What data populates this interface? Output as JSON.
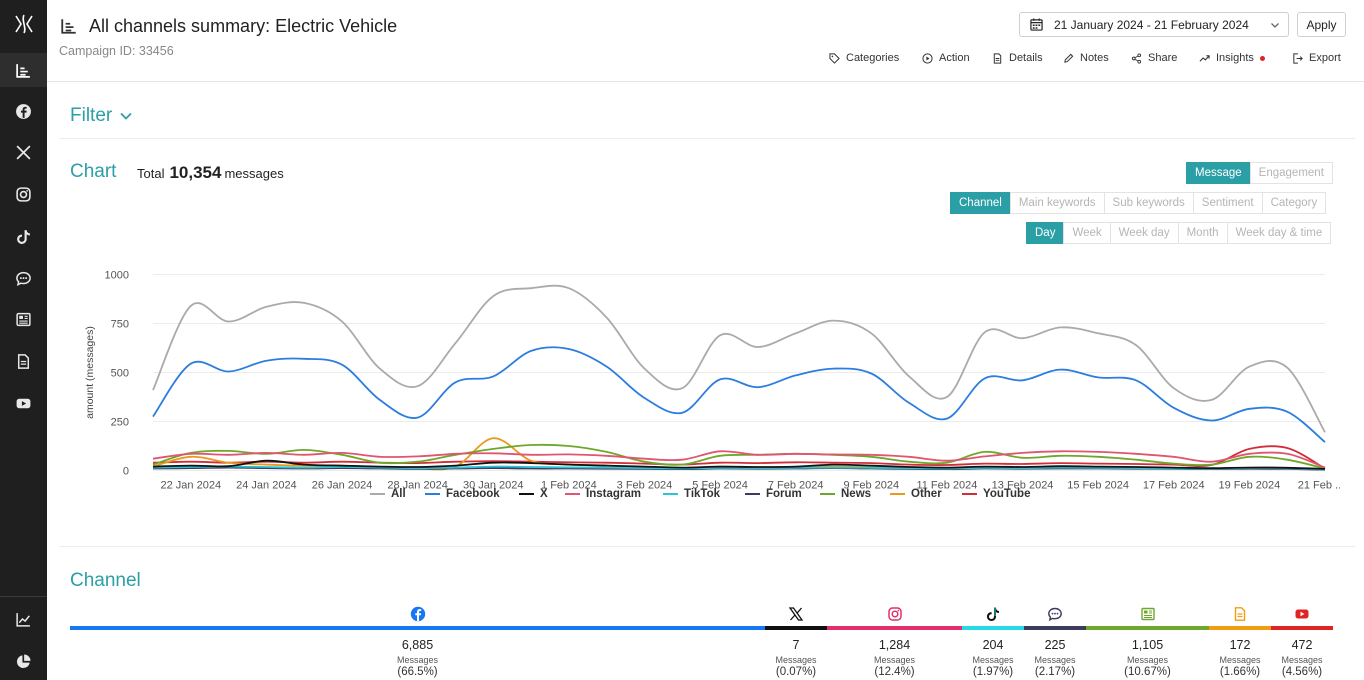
{
  "header": {
    "title": "All channels summary: Electric Vehicle",
    "campaign_id": "Campaign ID: 33456",
    "date_range": "21 January 2024 - 21 February 2024",
    "apply_label": "Apply",
    "actions": [
      {
        "label": "Categories",
        "icon": "tag-icon"
      },
      {
        "label": "Action",
        "icon": "play-circle-icon"
      },
      {
        "label": "Details",
        "icon": "document-icon"
      },
      {
        "label": "Notes",
        "icon": "pencil-icon"
      },
      {
        "label": "Share",
        "icon": "share-icon"
      },
      {
        "label": "Insights",
        "icon": "trend-icon"
      },
      {
        "label": "Export",
        "icon": "export-icon"
      }
    ]
  },
  "sidebar": {
    "items": [
      "logo",
      "summary-icon",
      "facebook-icon",
      "x-icon",
      "instagram-icon",
      "tiktok-icon",
      "chat-icon",
      "news-icon",
      "document-icon",
      "youtube-icon",
      "line-chart-icon",
      "pie-chart-icon"
    ]
  },
  "filter": {
    "label": "Filter"
  },
  "chart_section": {
    "heading": "Chart",
    "total_label": "Total",
    "total_value": "10,354",
    "total_unit": "messages",
    "metric_tabs": [
      "Message",
      "Engagement"
    ],
    "dimension_tabs": [
      "Channel",
      "Main keywords",
      "Sub keywords",
      "Sentiment",
      "Category"
    ],
    "period_tabs": [
      "Day",
      "Week",
      "Week day",
      "Month",
      "Week day & time"
    ]
  },
  "chart_data": {
    "type": "line",
    "ylabel": "amount (messages)",
    "ylim": [
      0,
      1000
    ],
    "yticks": [
      0,
      250,
      500,
      750,
      1000
    ],
    "x_tick_labels": [
      "22 Jan 2024",
      "24 Jan 2024",
      "26 Jan 2024",
      "28 Jan 2024",
      "30 Jan 2024",
      "1 Feb 2024",
      "3 Feb 2024",
      "5 Feb 2024",
      "7 Feb 2024",
      "9 Feb 2024",
      "11 Feb 2024",
      "13 Feb 2024",
      "15 Feb 2024",
      "17 Feb 2024",
      "19 Feb 2024",
      "21 Feb ..."
    ],
    "x": [
      "21 Jan",
      "22 Jan",
      "23 Jan",
      "24 Jan",
      "25 Jan",
      "26 Jan",
      "27 Jan",
      "28 Jan",
      "29 Jan",
      "30 Jan",
      "31 Jan",
      "1 Feb",
      "2 Feb",
      "3 Feb",
      "4 Feb",
      "5 Feb",
      "6 Feb",
      "7 Feb",
      "8 Feb",
      "9 Feb",
      "10 Feb",
      "11 Feb",
      "12 Feb",
      "13 Feb",
      "14 Feb",
      "15 Feb",
      "16 Feb",
      "17 Feb",
      "18 Feb",
      "19 Feb",
      "20 Feb",
      "21 Feb"
    ],
    "grid": true,
    "legend_position": "bottom",
    "series": [
      {
        "name": "All",
        "color": "#aaaaaa",
        "values": [
          410,
          840,
          760,
          835,
          855,
          760,
          520,
          430,
          650,
          890,
          930,
          930,
          780,
          520,
          420,
          690,
          630,
          700,
          765,
          700,
          480,
          375,
          705,
          675,
          730,
          700,
          640,
          420,
          360,
          530,
          525,
          195
        ]
      },
      {
        "name": "Facebook",
        "color": "#2b7de0",
        "values": [
          275,
          545,
          505,
          560,
          570,
          540,
          360,
          270,
          450,
          480,
          610,
          620,
          530,
          370,
          295,
          465,
          425,
          485,
          520,
          495,
          345,
          265,
          470,
          460,
          515,
          475,
          460,
          320,
          255,
          315,
          300,
          145
        ]
      },
      {
        "name": "X",
        "color": "#111111",
        "values": [
          20,
          25,
          22,
          50,
          30,
          25,
          20,
          18,
          25,
          40,
          38,
          30,
          25,
          20,
          15,
          20,
          18,
          20,
          30,
          25,
          18,
          15,
          20,
          18,
          22,
          20,
          18,
          15,
          12,
          15,
          14,
          8
        ]
      },
      {
        "name": "Instagram",
        "color": "#e05570",
        "values": [
          60,
          85,
          80,
          90,
          80,
          90,
          70,
          72,
          85,
          88,
          80,
          82,
          75,
          60,
          55,
          98,
          80,
          85,
          82,
          80,
          70,
          50,
          72,
          90,
          98,
          95,
          85,
          70,
          45,
          85,
          85,
          15
        ]
      },
      {
        "name": "TikTok",
        "color": "#2bc4d4",
        "values": [
          15,
          18,
          20,
          18,
          15,
          18,
          15,
          12,
          15,
          20,
          18,
          16,
          15,
          12,
          10,
          14,
          12,
          14,
          15,
          14,
          12,
          10,
          14,
          12,
          15,
          14,
          12,
          10,
          9,
          12,
          11,
          5
        ]
      },
      {
        "name": "Forum",
        "color": "#3c3c60",
        "values": [
          10,
          12,
          15,
          12,
          10,
          12,
          10,
          8,
          10,
          12,
          10,
          10,
          9,
          8,
          7,
          10,
          9,
          10,
          12,
          10,
          8,
          7,
          10,
          9,
          10,
          10,
          9,
          8,
          7,
          9,
          8,
          4
        ]
      },
      {
        "name": "News",
        "color": "#6ea82b",
        "values": [
          30,
          90,
          100,
          85,
          105,
          80,
          40,
          45,
          80,
          110,
          130,
          125,
          95,
          45,
          30,
          75,
          80,
          85,
          80,
          70,
          45,
          40,
          95,
          65,
          75,
          70,
          55,
          35,
          30,
          70,
          55,
          10
        ]
      },
      {
        "name": "Other",
        "color": "#e89a20",
        "values": [
          20,
          70,
          40,
          30,
          25,
          25,
          15,
          10,
          20,
          165,
          50,
          30,
          25,
          15,
          10,
          20,
          15,
          18,
          20,
          18,
          12,
          10,
          15,
          14,
          16,
          15,
          14,
          12,
          10,
          14,
          12,
          5
        ]
      },
      {
        "name": "YouTube",
        "color": "#d12e3a",
        "values": [
          40,
          45,
          40,
          45,
          40,
          45,
          40,
          38,
          45,
          48,
          45,
          42,
          40,
          35,
          30,
          40,
          38,
          42,
          40,
          38,
          30,
          28,
          35,
          33,
          38,
          35,
          33,
          30,
          28,
          110,
          115,
          10
        ]
      }
    ]
  },
  "channel_section": {
    "heading": "Channel",
    "messages_label": "Messages",
    "channels": [
      {
        "name": "Facebook",
        "icon": "facebook-icon",
        "color": "#1877f2",
        "value": "6,885",
        "pct": "(66.5%)",
        "share": 66.5
      },
      {
        "name": "X",
        "icon": "x-icon",
        "color": "#111111",
        "value": "7",
        "pct": "(0.07%)",
        "share": 0.07
      },
      {
        "name": "Instagram",
        "icon": "instagram-icon",
        "color": "#e1306c",
        "value": "1,284",
        "pct": "(12.4%)",
        "share": 12.4
      },
      {
        "name": "TikTok",
        "icon": "tiktok-icon",
        "color": "#25d9e6",
        "value": "204",
        "pct": "(1.97%)",
        "share": 1.97
      },
      {
        "name": "Forum",
        "icon": "chat-icon",
        "color": "#3c3c60",
        "value": "225",
        "pct": "(2.17%)",
        "share": 2.17
      },
      {
        "name": "News",
        "icon": "news-icon",
        "color": "#6ea82b",
        "value": "1,105",
        "pct": "(10.67%)",
        "share": 10.67
      },
      {
        "name": "Other",
        "icon": "document-icon",
        "color": "#f39c12",
        "value": "172",
        "pct": "(1.66%)",
        "share": 1.66
      },
      {
        "name": "YouTube",
        "icon": "youtube-icon",
        "color": "#e02424",
        "value": "472",
        "pct": "(4.56%)",
        "share": 4.56
      }
    ]
  }
}
